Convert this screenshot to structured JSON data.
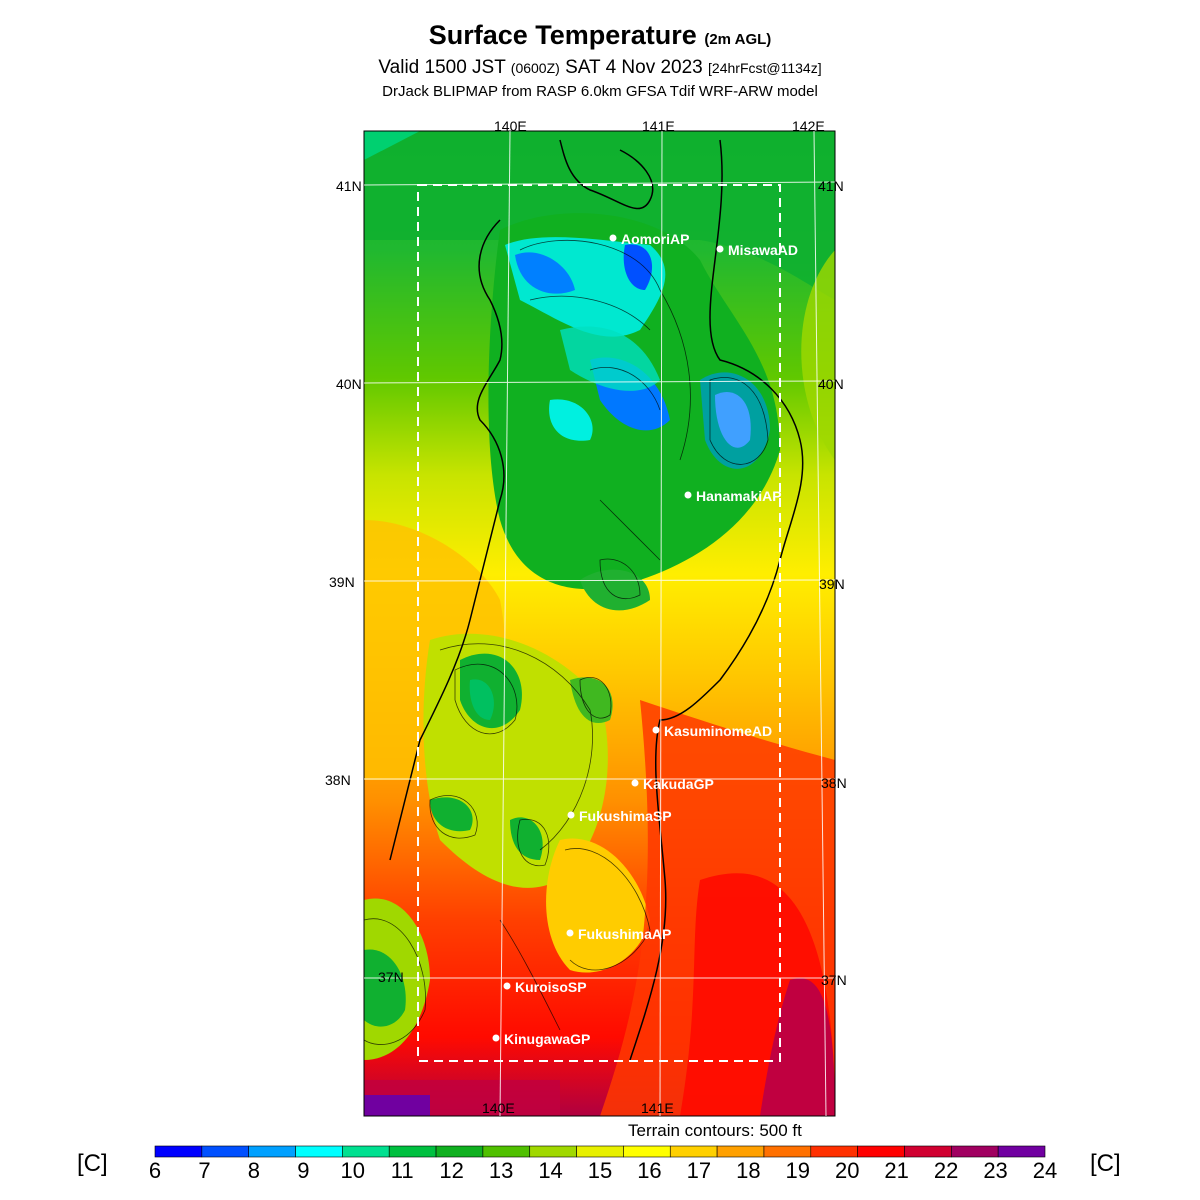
{
  "header": {
    "title": "Surface Temperature",
    "title_suffix": "(2m AGL)",
    "valid_prefix": "Valid 1500 JST",
    "valid_utc": "(0600Z)",
    "valid_date": "SAT 4 Nov 2023",
    "forecast": "[24hrFcst@1134z]",
    "model": "DrJack BLIPMAP from RASP 6.0km GFSA Tdif WRF-ARW model"
  },
  "map": {
    "lon_labels": [
      "140E",
      "141E",
      "142E"
    ],
    "lat_labels": [
      "41N",
      "40N",
      "39N",
      "38N",
      "37N"
    ],
    "stations": [
      {
        "name": "AomoriAP"
      },
      {
        "name": "MisawaAD"
      },
      {
        "name": "HanamakiAP"
      },
      {
        "name": "KasuminomeAD"
      },
      {
        "name": "KakudaGP"
      },
      {
        "name": "FukushimaSP"
      },
      {
        "name": "FukushimaAP"
      },
      {
        "name": "KuroisoSP"
      },
      {
        "name": "KinugawaGP"
      }
    ],
    "terrain_note": "Terrain contours: 500 ft",
    "station_color": "#ffffff"
  },
  "legend": {
    "unit_left": "[C]",
    "unit_right": "[C]",
    "ticks": [
      "6",
      "7",
      "8",
      "9",
      "10",
      "11",
      "12",
      "13",
      "14",
      "15",
      "16",
      "17",
      "18",
      "19",
      "20",
      "21",
      "22",
      "23",
      "24"
    ],
    "colors": [
      "#0000ff",
      "#0050ff",
      "#00a0ff",
      "#00ffff",
      "#00e090",
      "#00c040",
      "#10b020",
      "#50c000",
      "#a0d800",
      "#e8f000",
      "#ffff00",
      "#ffd000",
      "#ffa000",
      "#ff7000",
      "#ff3000",
      "#ff0000",
      "#d00030",
      "#a00060",
      "#7000a0"
    ]
  }
}
